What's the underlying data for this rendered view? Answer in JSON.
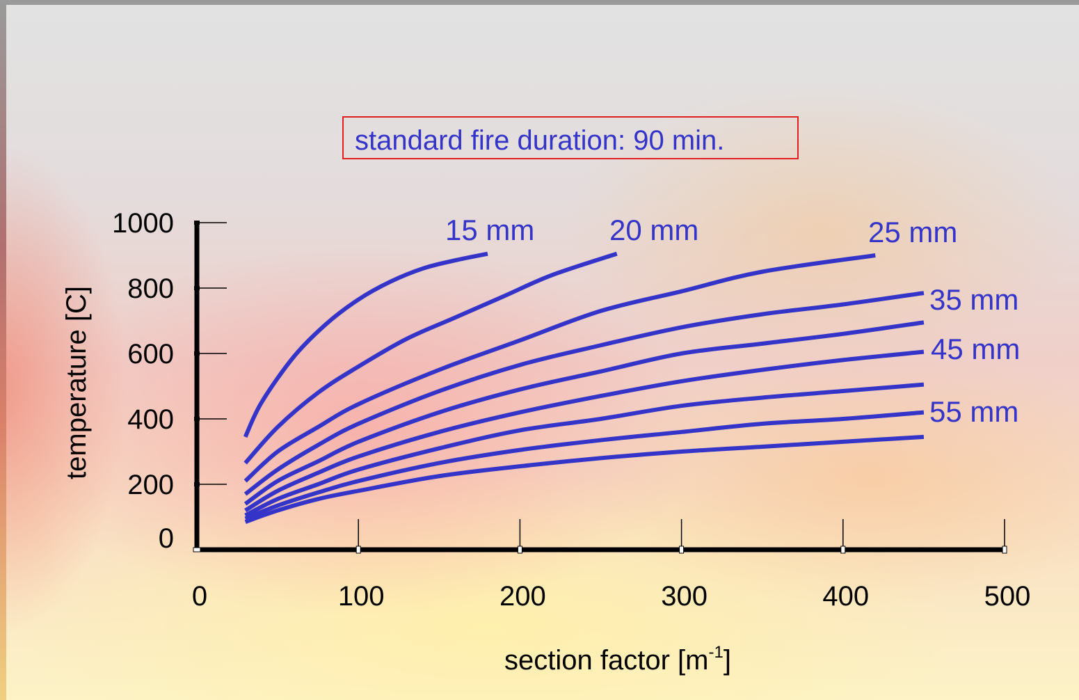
{
  "chart_data": {
    "type": "line",
    "title": "standard fire duration: 90 min.",
    "xlabel": "section factor [m",
    "xlabel_sup": "-1",
    "xlabel_end": "]",
    "ylabel": "temperature [C]",
    "xlim": [
      0,
      500
    ],
    "ylim": [
      0,
      1000
    ],
    "x_ticks": [
      0,
      100,
      200,
      300,
      400,
      500
    ],
    "y_ticks": [
      0,
      200,
      400,
      600,
      800,
      1000
    ],
    "x_tick_labels": [
      "0",
      "100",
      "200",
      "300",
      "400",
      "500"
    ],
    "y_tick_labels": [
      "0",
      "200",
      "400",
      "600",
      "800",
      "1000"
    ],
    "line_color": "#3434c8",
    "title_border_color": "#e02020",
    "grid": false,
    "series": [
      {
        "name": "15 mm",
        "x": [
          30,
          40,
          60,
          80,
          100,
          120,
          140,
          160,
          180
        ],
        "y": [
          345,
          450,
          590,
          690,
          765,
          820,
          860,
          885,
          905
        ]
      },
      {
        "name": "20 mm",
        "x": [
          30,
          50,
          75,
          100,
          130,
          160,
          190,
          220,
          260
        ],
        "y": [
          265,
          375,
          480,
          560,
          645,
          710,
          775,
          840,
          905
        ]
      },
      {
        "name": "25 mm",
        "x": [
          30,
          50,
          75,
          100,
          150,
          200,
          250,
          300,
          350,
          420
        ],
        "y": [
          210,
          300,
          375,
          445,
          550,
          640,
          730,
          790,
          850,
          900
        ]
      },
      {
        "name": "",
        "x": [
          30,
          50,
          75,
          100,
          150,
          200,
          250,
          300,
          350,
          400,
          450
        ],
        "y": [
          170,
          245,
          320,
          385,
          485,
          565,
          625,
          680,
          720,
          750,
          785
        ]
      },
      {
        "name": "35 mm",
        "x": [
          30,
          50,
          75,
          100,
          150,
          200,
          250,
          300,
          350,
          400,
          450
        ],
        "y": [
          140,
          210,
          270,
          330,
          420,
          490,
          545,
          600,
          630,
          660,
          695
        ]
      },
      {
        "name": "45 mm",
        "x": [
          30,
          50,
          75,
          100,
          150,
          200,
          250,
          300,
          350,
          400,
          450
        ],
        "y": [
          120,
          180,
          235,
          285,
          360,
          420,
          470,
          515,
          550,
          580,
          605
        ]
      },
      {
        "name": "",
        "x": [
          30,
          50,
          75,
          100,
          150,
          200,
          250,
          300,
          350,
          400,
          450
        ],
        "y": [
          105,
          155,
          200,
          245,
          310,
          365,
          400,
          440,
          465,
          485,
          505
        ]
      },
      {
        "name": "55 mm",
        "x": [
          30,
          50,
          75,
          100,
          150,
          200,
          250,
          300,
          350,
          400,
          450
        ],
        "y": [
          95,
          135,
          175,
          210,
          265,
          305,
          335,
          360,
          385,
          400,
          420
        ]
      },
      {
        "name": "",
        "x": [
          30,
          50,
          75,
          100,
          150,
          200,
          250,
          300,
          350,
          400,
          450
        ],
        "y": [
          85,
          120,
          155,
          180,
          225,
          255,
          280,
          300,
          315,
          330,
          345
        ]
      }
    ]
  }
}
